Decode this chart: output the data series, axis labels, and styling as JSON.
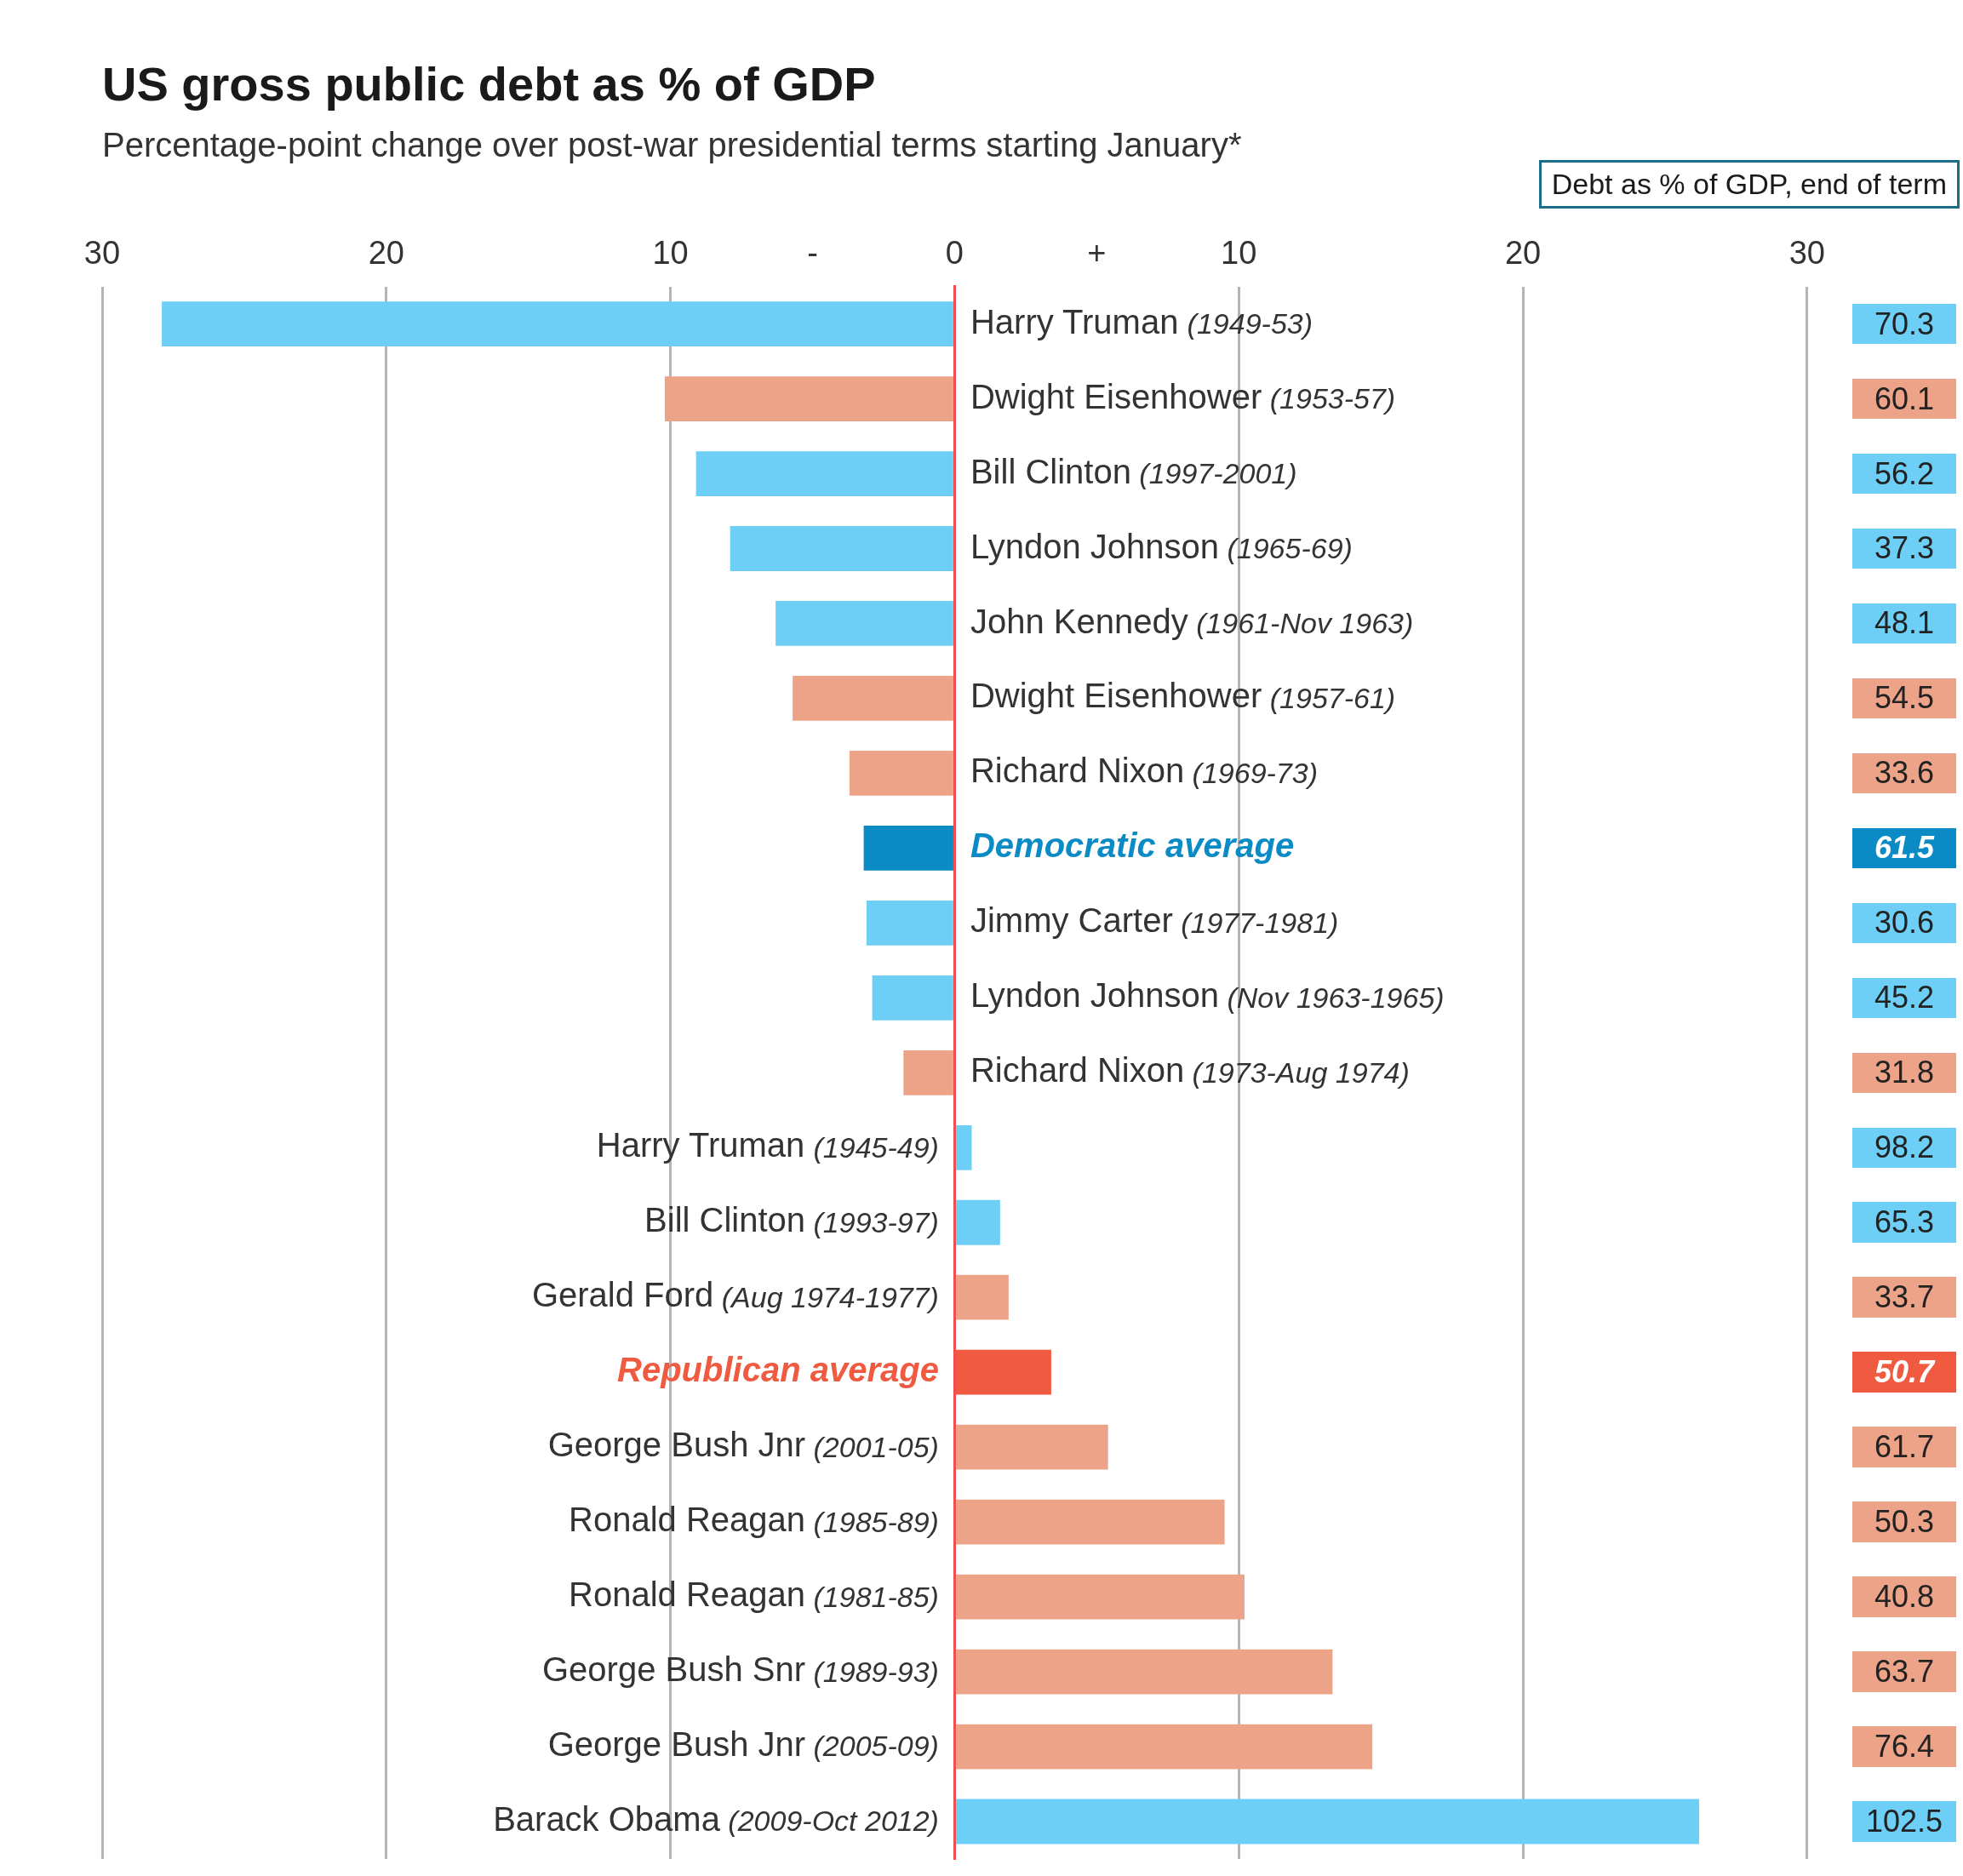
{
  "chart_data": [
    {
      "type": "bar",
      "orientation": "horizontal",
      "title": "US gross public debt as % of GDP",
      "subtitle": "Percentage-point change over post-war presidential terms starting January*",
      "categories": [
        "Harry Truman (1949-53)",
        "Dwight Eisenhower (1953-57)",
        "Bill Clinton (1997-2001)",
        "Lyndon Johnson (1965-69)",
        "John Kennedy (1961-Nov 1963)",
        "Dwight Eisenhower (1957-61)",
        "Richard Nixon (1969-73)",
        "Democratic average",
        "Jimmy Carter (1977-1981)",
        "Lyndon Johnson (Nov 1963-1965)",
        "Richard Nixon (1973-Aug 1974)",
        "Harry Truman (1945-49)",
        "Bill Clinton (1993-97)",
        "Gerald Ford (Aug 1974-1977)",
        "Republican average",
        "George Bush Jnr (2001-05)",
        "Ronald Reagan (1985-89)",
        "Ronald Reagan (1981-85)",
        "George Bush Snr (1989-93)",
        "George Bush Jnr (2005-09)",
        "Barack Obama (2009-Oct 2012)"
      ],
      "values": [
        -27.9,
        -10.2,
        -9.1,
        -7.9,
        -6.3,
        -5.7,
        -3.7,
        -3.2,
        -3.1,
        -2.9,
        -1.8,
        0.6,
        1.6,
        1.9,
        3.4,
        5.4,
        9.5,
        10.2,
        13.3,
        14.7,
        26.2
      ],
      "colors": [
        "#6dcff6",
        "#eca388",
        "#6dcff6",
        "#6dcff6",
        "#6dcff6",
        "#eca388",
        "#eca388",
        "#0a8bc6",
        "#6dcff6",
        "#6dcff6",
        "#eca388",
        "#6dcff6",
        "#6dcff6",
        "#eca388",
        "#ef5a40",
        "#eca388",
        "#eca388",
        "#eca388",
        "#eca388",
        "#eca388",
        "#6dcff6"
      ],
      "xlim": [
        -30,
        30
      ],
      "xticks": [
        {
          "value": -30,
          "label": "30"
        },
        {
          "value": -20,
          "label": "20"
        },
        {
          "value": -10,
          "label": "10"
        },
        {
          "value": -5,
          "label": "-"
        },
        0,
        {
          "value": 5,
          "label": "+"
        },
        10,
        20,
        30
      ],
      "grid": "x",
      "legend": false
    },
    {
      "type": "other",
      "title": "Debt as % of GDP, end of term",
      "values": [
        70.3,
        60.1,
        56.2,
        37.3,
        48.1,
        54.5,
        33.6,
        61.5,
        30.6,
        45.2,
        31.8,
        98.2,
        65.3,
        33.7,
        50.7,
        61.7,
        50.3,
        40.8,
        63.7,
        76.4,
        102.5
      ],
      "colors": [
        "#6dcff6",
        "#eca388",
        "#6dcff6",
        "#6dcff6",
        "#6dcff6",
        "#eca388",
        "#eca388",
        "#0a8bc6",
        "#6dcff6",
        "#6dcff6",
        "#eca388",
        "#6dcff6",
        "#6dcff6",
        "#eca388",
        "#ef5a40",
        "#eca388",
        "#eca388",
        "#eca388",
        "#eca388",
        "#eca388",
        "#6dcff6"
      ],
      "data_labels": true
    }
  ]
}
